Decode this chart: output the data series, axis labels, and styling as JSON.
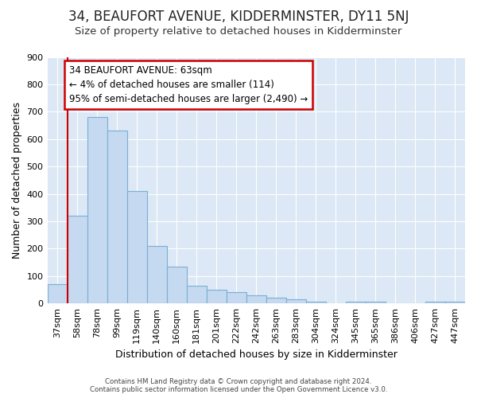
{
  "title": "34, BEAUFORT AVENUE, KIDDERMINSTER, DY11 5NJ",
  "subtitle": "Size of property relative to detached houses in Kidderminster",
  "xlabel": "Distribution of detached houses by size in Kidderminster",
  "ylabel": "Number of detached properties",
  "categories": [
    "37sqm",
    "58sqm",
    "78sqm",
    "99sqm",
    "119sqm",
    "140sqm",
    "160sqm",
    "181sqm",
    "201sqm",
    "222sqm",
    "242sqm",
    "263sqm",
    "283sqm",
    "304sqm",
    "324sqm",
    "345sqm",
    "365sqm",
    "386sqm",
    "406sqm",
    "427sqm",
    "447sqm"
  ],
  "values": [
    70,
    320,
    680,
    630,
    410,
    210,
    135,
    65,
    50,
    40,
    30,
    20,
    15,
    5,
    0,
    5,
    5,
    0,
    0,
    5,
    5
  ],
  "bar_color": "#c5d9f0",
  "bar_edge_color": "#7bafd4",
  "annotation_box_text": "34 BEAUFORT AVENUE: 63sqm\n← 4% of detached houses are smaller (114)\n95% of semi-detached houses are larger (2,490) →",
  "annotation_box_color": "#ffffff",
  "annotation_box_edge_color": "#cc0000",
  "annotation_line_color": "#cc0000",
  "footer_line1": "Contains HM Land Registry data © Crown copyright and database right 2024.",
  "footer_line2": "Contains public sector information licensed under the Open Government Licence v3.0.",
  "bg_color": "#ffffff",
  "plot_bg_color": "#dce8f5",
  "grid_color": "#ffffff",
  "ylim": [
    0,
    900
  ],
  "yticks": [
    0,
    100,
    200,
    300,
    400,
    500,
    600,
    700,
    800,
    900
  ],
  "title_fontsize": 12,
  "subtitle_fontsize": 9.5,
  "axis_label_fontsize": 9,
  "tick_fontsize": 8
}
